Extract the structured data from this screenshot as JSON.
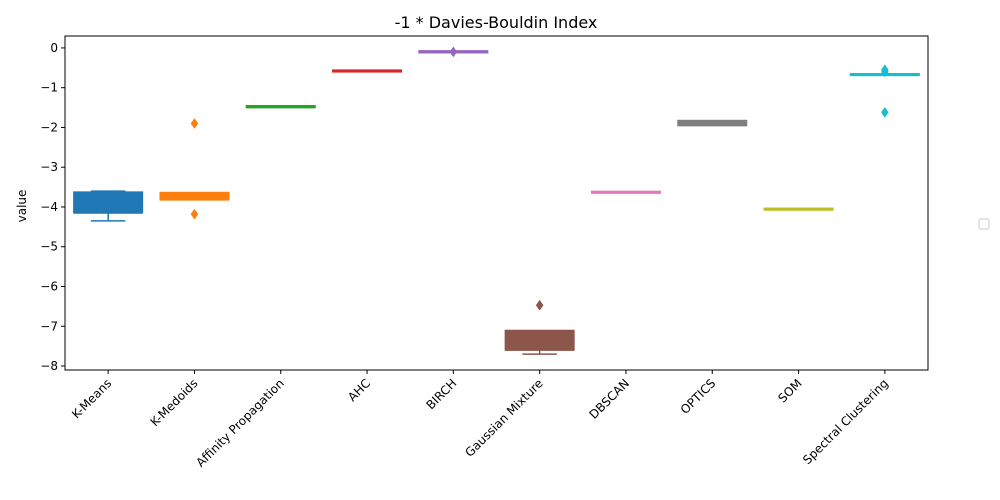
{
  "chart_data": {
    "type": "box",
    "title": "-1 * Davies-Bouldin Index",
    "xlabel": "",
    "ylabel": "value",
    "ylim": [
      -8.1,
      0.3
    ],
    "yticks": [
      0,
      -1,
      -2,
      -3,
      -4,
      -5,
      -6,
      -7,
      -8
    ],
    "ytick_labels": [
      "0",
      "−1",
      "−2",
      "−3",
      "−4",
      "−5",
      "−6",
      "−7",
      "−8"
    ],
    "grid": false,
    "legend": "right (empty)",
    "categories": [
      "K-Means",
      "K-Medoids",
      "Affinity Propagation",
      "AHC",
      "BIRCH",
      "Gaussian Mixture",
      "DBSCAN",
      "OPTICS",
      "SOM",
      "Spectral Clustering"
    ],
    "series": [
      {
        "category": "K-Means",
        "color": "#1f77b4",
        "whisker_low": -4.35,
        "q1": -4.15,
        "median": -4.15,
        "q3": -3.62,
        "whisker_high": -3.6,
        "outliers": []
      },
      {
        "category": "K-Medoids",
        "color": "#ff7f0e",
        "whisker_low": -3.82,
        "q1": -3.82,
        "median": -3.82,
        "q3": -3.63,
        "whisker_high": -3.63,
        "outliers": [
          -1.9,
          -4.18
        ]
      },
      {
        "category": "Affinity Propagation",
        "color": "#2ca02c",
        "whisker_low": -1.51,
        "q1": -1.5,
        "median": -1.5,
        "q3": -1.45,
        "whisker_high": -1.45,
        "outliers": []
      },
      {
        "category": "AHC",
        "color": "#d62728",
        "whisker_low": -0.58,
        "q1": -0.58,
        "median": -0.58,
        "q3": -0.58,
        "whisker_high": -0.58,
        "outliers": []
      },
      {
        "category": "BIRCH",
        "color": "#9467bd",
        "whisker_low": -0.12,
        "q1": -0.12,
        "median": -0.12,
        "q3": -0.07,
        "whisker_high": -0.07,
        "outliers": [
          -0.1
        ]
      },
      {
        "category": "Gaussian Mixture",
        "color": "#8c564b",
        "whisker_low": -7.7,
        "q1": -7.6,
        "median": -7.6,
        "q3": -7.1,
        "whisker_high": -7.1,
        "outliers": [
          -6.47
        ]
      },
      {
        "category": "DBSCAN",
        "color": "#e377c2",
        "whisker_low": -3.63,
        "q1": -3.63,
        "median": -3.63,
        "q3": -3.63,
        "whisker_high": -3.63,
        "outliers": []
      },
      {
        "category": "OPTICS",
        "color": "#7f7f7f",
        "whisker_low": -1.96,
        "q1": -1.96,
        "median": -1.9,
        "q3": -1.82,
        "whisker_high": -1.82,
        "outliers": []
      },
      {
        "category": "SOM",
        "color": "#bcbd22",
        "whisker_low": -4.08,
        "q1": -4.08,
        "median": -4.05,
        "q3": -4.03,
        "whisker_high": -4.03,
        "outliers": []
      },
      {
        "category": "Spectral Clustering",
        "color": "#17becf",
        "whisker_low": -0.67,
        "q1": -0.67,
        "median": -0.67,
        "q3": -0.67,
        "whisker_high": -0.67,
        "outliers": [
          -0.55,
          -0.6,
          -1.62
        ]
      }
    ]
  }
}
